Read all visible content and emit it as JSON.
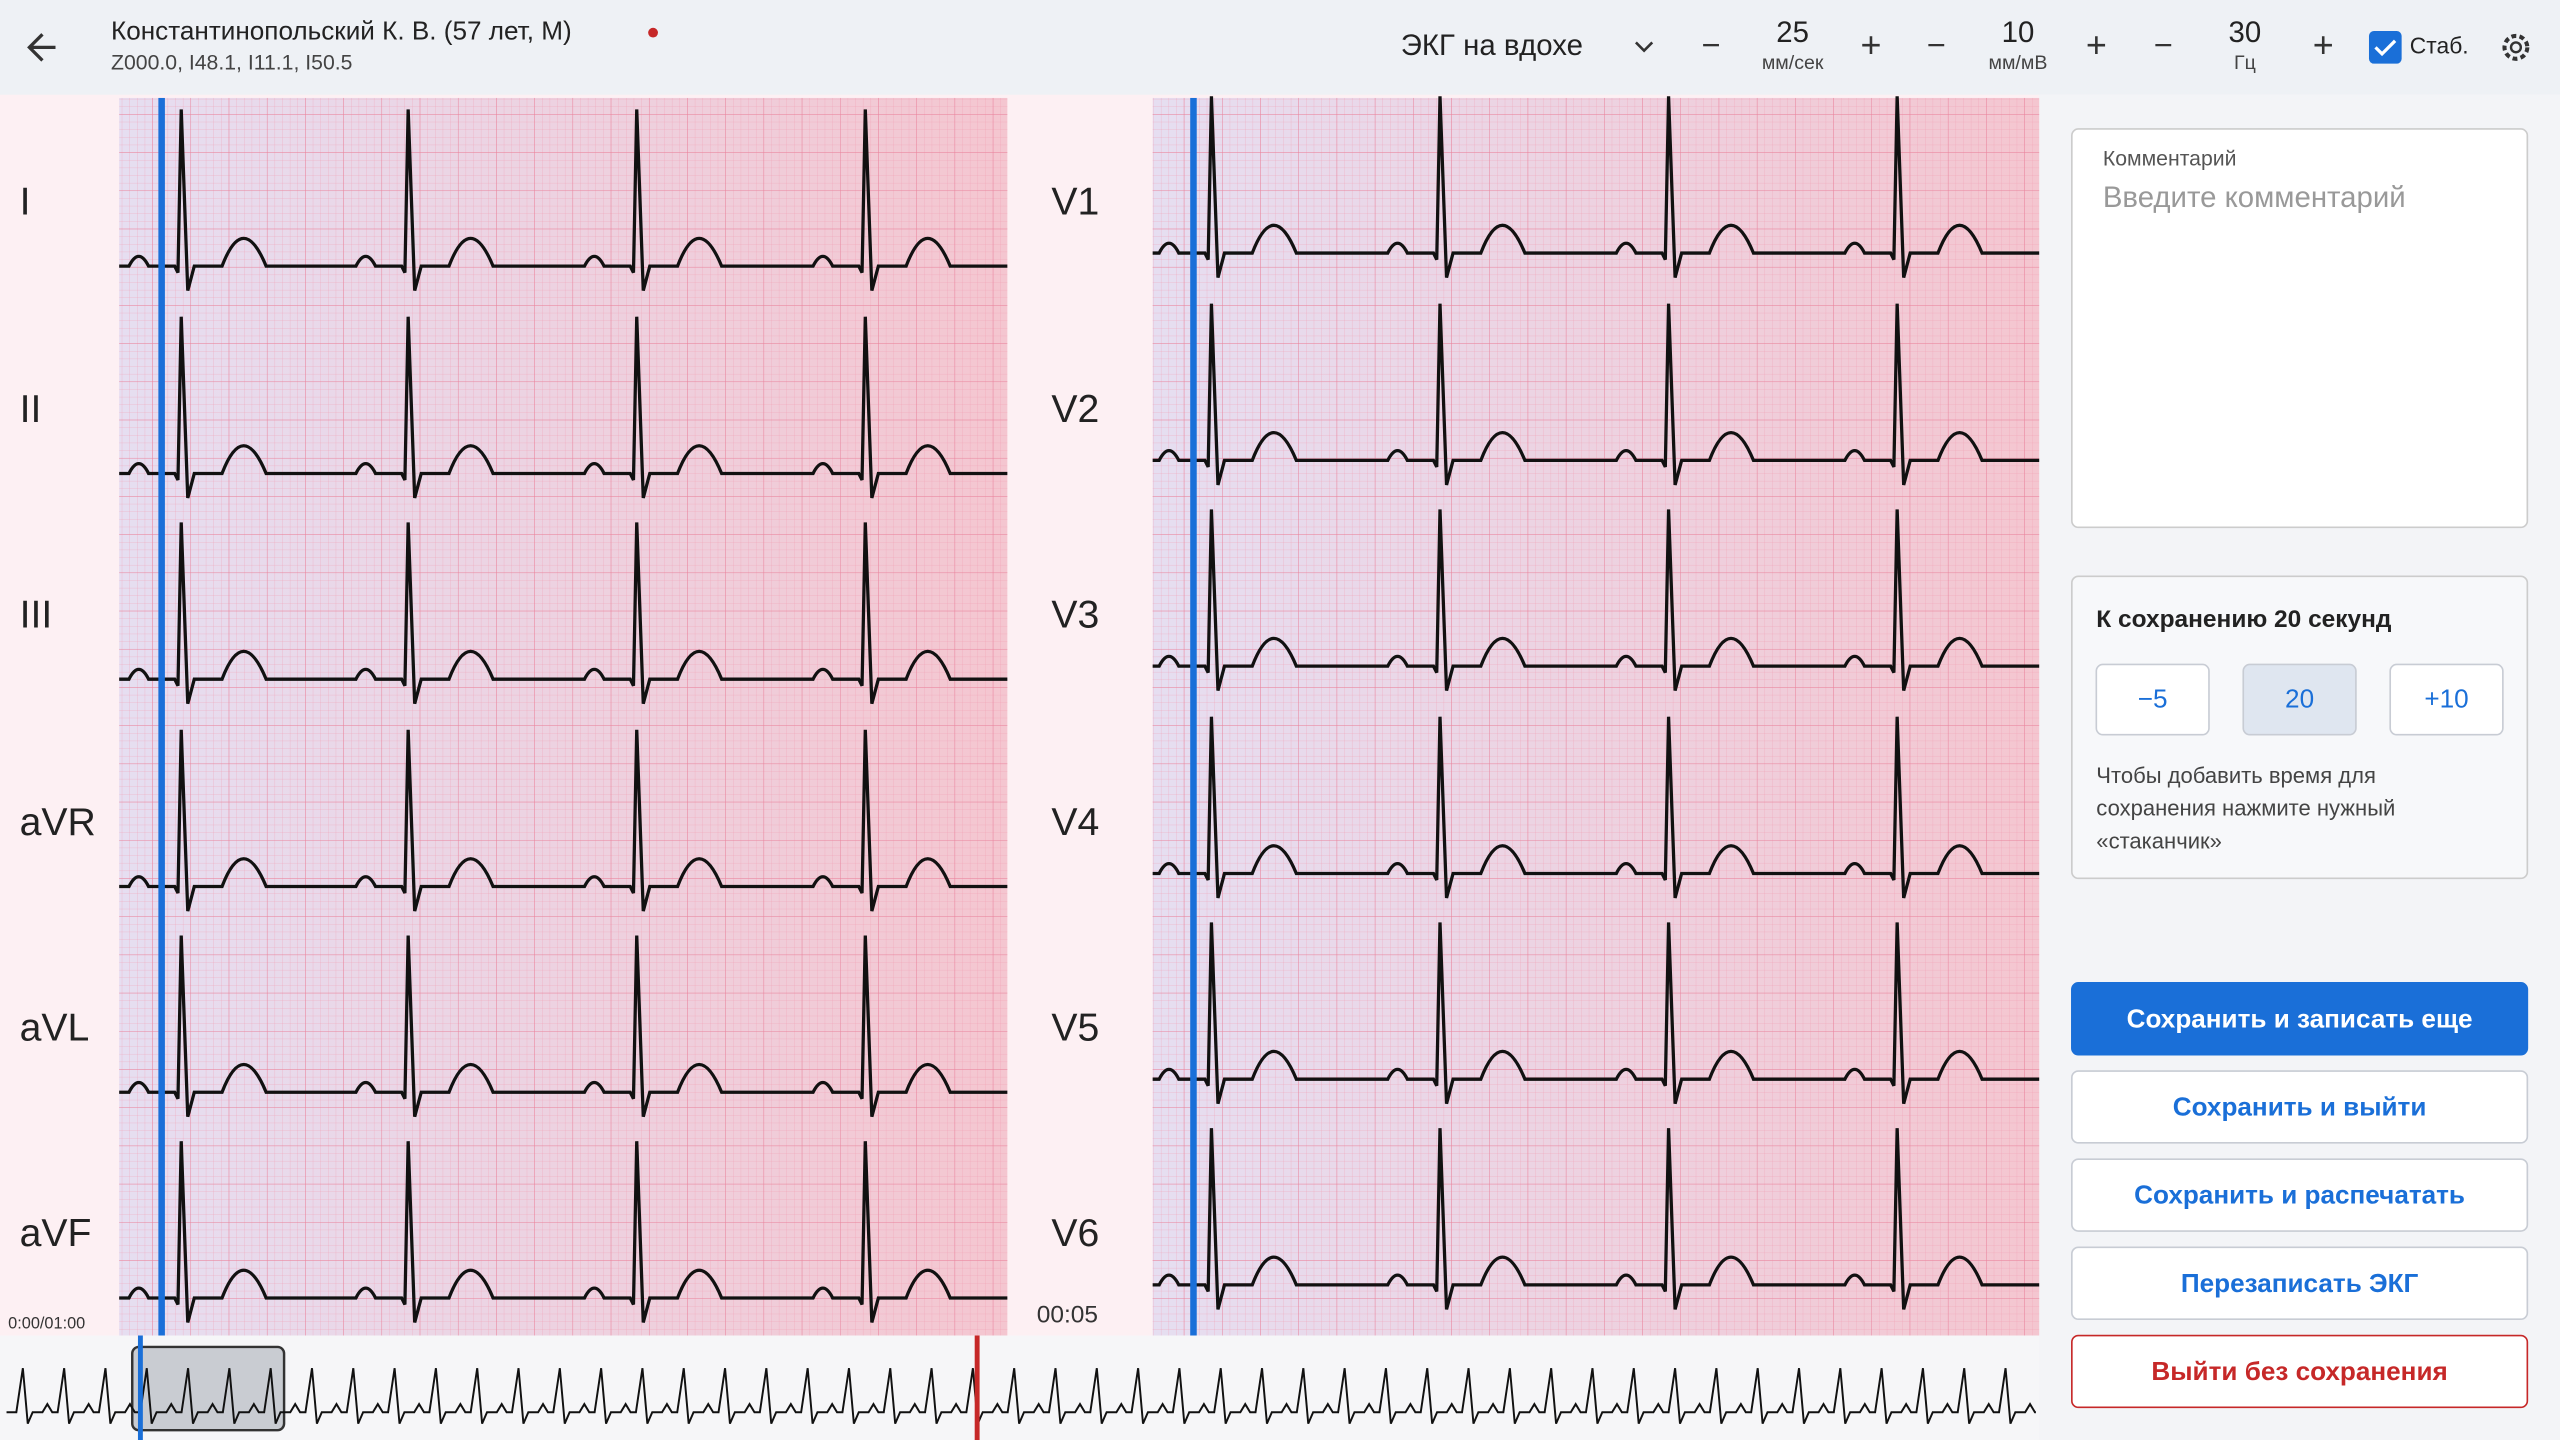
{
  "header": {
    "patient": "Константинопольский К. В. (57 лет, М)",
    "diagnoses": "Z000.0, I48.1, I11.1, I50.5",
    "mode": "ЭКГ на вдохе",
    "controls": [
      {
        "value": "25",
        "unit": "мм/сек"
      },
      {
        "value": "10",
        "unit": "мм/мВ"
      },
      {
        "value": "30",
        "unit": "Гц"
      }
    ],
    "stab": "Стаб."
  },
  "leads_left": [
    "I",
    "II",
    "III",
    "aVR",
    "aVL",
    "aVF"
  ],
  "leads_right": [
    "V1",
    "V2",
    "V3",
    "V4",
    "V5",
    "V6"
  ],
  "time_total": "0:00/01:00",
  "time_current": "00:05",
  "sidebar": {
    "comment_label": "Комментарий",
    "comment_placeholder": "Введите комментарий",
    "save_title": "К сохранению 20 секунд",
    "durations": [
      "−5",
      "20",
      "+10"
    ],
    "hint": [
      "Чтобы добавить время для",
      "сохранения нажмите нужный",
      "«стаканчик»"
    ],
    "buttons": [
      "Сохранить и записать еще",
      "Сохранить и выйти",
      "Сохранить и распечатать",
      "Перезаписать ЭКГ",
      "Выйти без сохранения"
    ]
  }
}
